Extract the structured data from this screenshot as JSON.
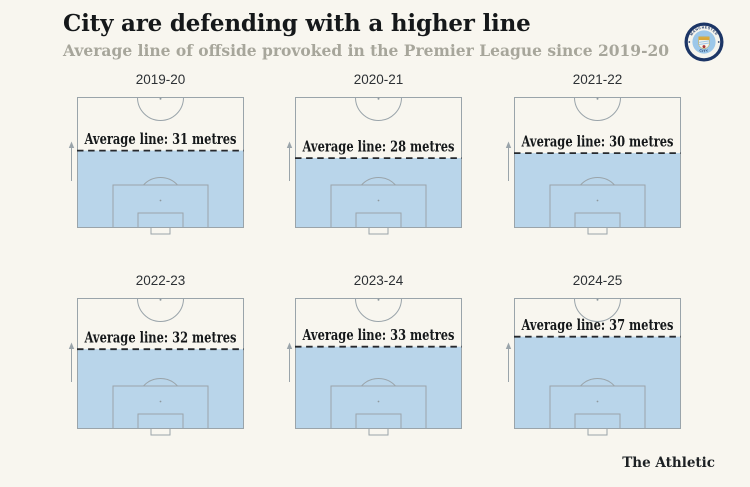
{
  "header": {
    "title": "City are defending with a higher line",
    "subtitle": "Average line of offside provoked in the Premier League since 2019-20"
  },
  "badge": {
    "club": "Manchester City",
    "top_text": "MANCHESTER",
    "bottom_text": "CITY"
  },
  "footer": {
    "brand": "The Athletic"
  },
  "colors": {
    "background": "#f8f6ef",
    "pitch_fill": "#b9d5ea",
    "pitch_line": "#9aa4aa",
    "dashed_line": "#26292d",
    "title_text": "#15181a",
    "subtitle_text": "#a7a69b",
    "badge_navy": "#1c3566",
    "badge_sky": "#9cc7e9"
  },
  "chart_data": {
    "type": "area",
    "subtype": "football-pitch-small-multiples",
    "title": "City are defending with a higher line",
    "subtitle": "Average line of offside provoked in the Premier League since 2019-20",
    "unit": "metres",
    "pitch_half_depth_m": 52.5,
    "grid_layout": "2 rows x 3 columns",
    "shading_note": "blue area spans from goal line up to the average offside line; dashed line marks the average line",
    "categories": [
      "2019-20",
      "2020-21",
      "2021-22",
      "2022-23",
      "2023-24",
      "2024-25"
    ],
    "values": [
      31,
      28,
      30,
      32,
      33,
      37
    ],
    "seasons": [
      {
        "season": "2019-20",
        "average_line_m": 31,
        "label": "Average line: 31 metres"
      },
      {
        "season": "2020-21",
        "average_line_m": 28,
        "label": "Average line: 28 metres"
      },
      {
        "season": "2021-22",
        "average_line_m": 30,
        "label": "Average line: 30 metres"
      },
      {
        "season": "2022-23",
        "average_line_m": 32,
        "label": "Average line: 32 metres"
      },
      {
        "season": "2023-24",
        "average_line_m": 33,
        "label": "Average line: 33 metres"
      },
      {
        "season": "2024-25",
        "average_line_m": 37,
        "label": "Average line: 37 metres"
      }
    ]
  }
}
